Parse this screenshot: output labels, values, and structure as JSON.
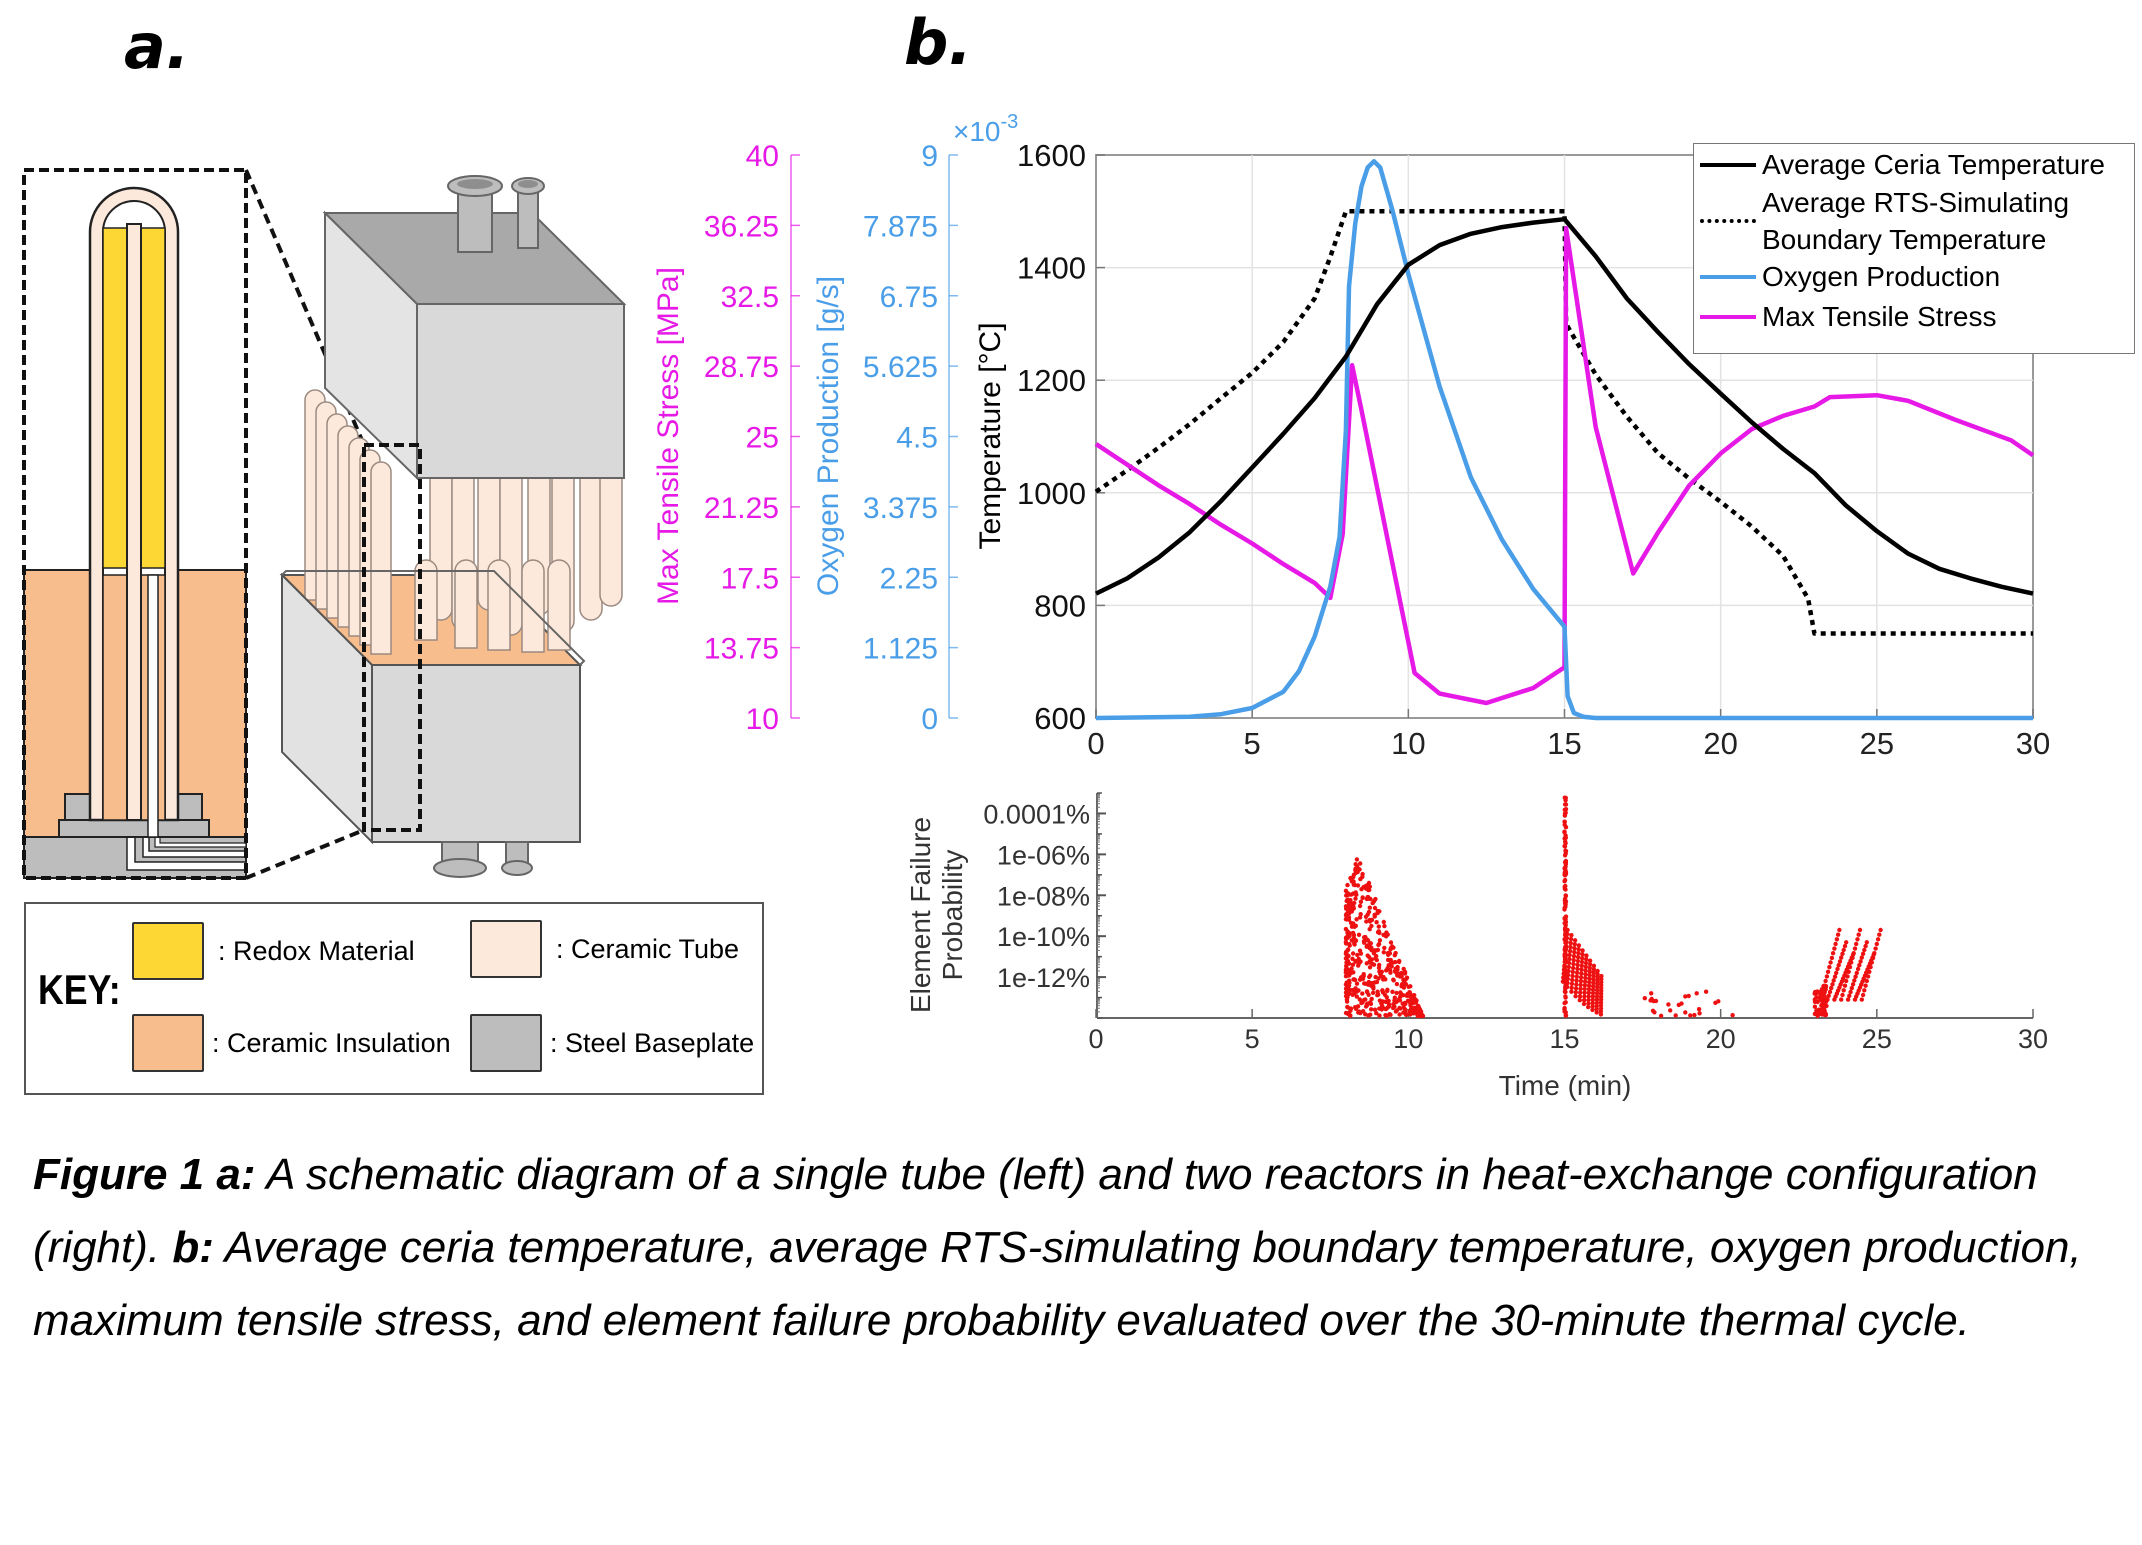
{
  "panel_labels": {
    "a": "a.",
    "b": "b."
  },
  "key": {
    "title": "KEY:",
    "items": [
      {
        "label": ": Redox Material",
        "color": "#fdd835"
      },
      {
        "label": ": Ceramic Tube",
        "color": "#fde9dc"
      },
      {
        "label": ": Ceramic Insulation",
        "color": "#f8bd8c"
      },
      {
        "label": ": Steel Baseplate",
        "color": "#bdbdbd"
      }
    ]
  },
  "schematic": {
    "colors": {
      "redox": "#fdd835",
      "tube": "#fde9dc",
      "insulation": "#f8bd8c",
      "steel": "#bdbdbd",
      "box_front": "#d9d9d9",
      "box_side": "#e4e4e4",
      "box_top": "#a9a9a9",
      "outline": "#222222"
    }
  },
  "caption": {
    "lead_a": "Figure 1 a:",
    "text_a": " A schematic diagram of a single tube (left) and two reactors in heat-exchange configuration (right). ",
    "lead_b": "b:",
    "text_b": " Average ceria temperature, average RTS-simulating boundary temperature, oxygen production, maximum tensile stress, and element failure probability evaluated over the 30-minute thermal cycle."
  },
  "chart_data": [
    {
      "type": "line",
      "title": "",
      "xlabel": "",
      "ylabel": "Temperature [°C]",
      "xlim": [
        0,
        30
      ],
      "ylim": [
        600,
        1600
      ],
      "xticks": [
        0,
        5,
        10,
        15,
        20,
        25,
        30
      ],
      "yticks": [
        600,
        800,
        1000,
        1200,
        1400,
        1600
      ],
      "grid": true,
      "legend_position": "top-right",
      "secondary_axes": [
        {
          "label": "Max Tensile Stress [MPa]",
          "color": "#e619e6",
          "ylim": [
            10,
            40
          ],
          "ticks": [
            "10",
            "13.75",
            "17.5",
            "21.25",
            "25",
            "28.75",
            "32.5",
            "36.25",
            "40"
          ]
        },
        {
          "label": "Oxygen Production [g/s]",
          "color": "#4a9ee8",
          "ylim": [
            0,
            9
          ],
          "multiplier": "×10",
          "exponent": "-3",
          "ticks": [
            "0",
            "1.125",
            "2.25",
            "3.375",
            "4.5",
            "5.625",
            "6.75",
            "7.875",
            "9"
          ]
        }
      ],
      "series": [
        {
          "name": "Average Ceria Temperature",
          "axis": "temperature",
          "color": "#000000",
          "style": "solid",
          "x": [
            0,
            1,
            2,
            3,
            4,
            5,
            6,
            7,
            8,
            9,
            10,
            11,
            12,
            13,
            14,
            15,
            16,
            17,
            18,
            19,
            20,
            21,
            22,
            23,
            24,
            25,
            26,
            27,
            28,
            29,
            30
          ],
          "y": [
            821,
            848,
            885,
            930,
            985,
            1045,
            1105,
            1168,
            1242,
            1335,
            1405,
            1440,
            1460,
            1472,
            1480,
            1486,
            1420,
            1345,
            1285,
            1228,
            1176,
            1125,
            1078,
            1035,
            978,
            932,
            892,
            865,
            848,
            833,
            821
          ]
        },
        {
          "name": "Average RTS-Simulating Boundary Temperature",
          "axis": "temperature",
          "color": "#000000",
          "style": "dotted",
          "x": [
            0,
            1,
            2,
            3,
            4,
            5,
            6,
            7,
            7.5,
            8,
            9,
            10,
            11,
            12,
            13,
            14,
            15,
            15.05,
            16,
            17,
            18,
            19,
            20,
            21,
            22,
            22.8,
            23,
            24,
            25,
            26,
            27,
            28,
            29,
            30
          ],
          "y": [
            1002,
            1040,
            1080,
            1122,
            1168,
            1213,
            1268,
            1345,
            1419,
            1500,
            1500,
            1500,
            1500,
            1500,
            1500,
            1500,
            1500,
            1300,
            1210,
            1135,
            1070,
            1025,
            984,
            940,
            888,
            812,
            750,
            750,
            750,
            750,
            750,
            750,
            750,
            750
          ]
        },
        {
          "name": "Oxygen Production",
          "axis": "oxygen",
          "unit": "g/s ×10^-3",
          "color": "#4a9ee8",
          "style": "solid",
          "x": [
            0,
            3,
            4,
            5,
            6,
            6.5,
            7,
            7.5,
            7.8,
            8.0,
            8.1,
            8.3,
            8.5,
            8.7,
            8.9,
            9.1,
            9.5,
            10,
            11,
            12,
            13,
            14,
            15,
            15.1,
            15.3,
            15.6,
            16,
            20,
            25,
            30
          ],
          "y": [
            0,
            0.02,
            0.06,
            0.16,
            0.42,
            0.75,
            1.3,
            2.1,
            2.9,
            4.6,
            6.9,
            7.9,
            8.5,
            8.8,
            8.9,
            8.8,
            8.1,
            7.1,
            5.3,
            3.85,
            2.85,
            2.06,
            1.46,
            0.35,
            0.08,
            0.02,
            0,
            0,
            0,
            0
          ]
        },
        {
          "name": "Max Tensile Stress",
          "axis": "stress",
          "unit": "MPa",
          "color": "#e619e6",
          "style": "solid",
          "x": [
            0,
            1,
            2,
            3,
            4,
            5,
            6,
            7,
            7.5,
            7.9,
            8.2,
            8.5,
            9.3,
            10.2,
            11,
            12.5,
            14,
            15,
            15.05,
            16,
            17.2,
            18,
            19,
            20,
            21,
            22,
            23,
            23.5,
            25,
            26,
            27.5,
            29.3,
            30
          ],
          "y": [
            24.6,
            23.5,
            22.4,
            21.4,
            20.3,
            19.3,
            18.2,
            17.2,
            16.4,
            19.8,
            28.8,
            26.4,
            19.8,
            12.4,
            11.3,
            10.8,
            11.6,
            12.7,
            36.1,
            25.5,
            17.7,
            19.9,
            22.4,
            24.1,
            25.4,
            26.1,
            26.6,
            27.1,
            27.2,
            26.9,
            25.9,
            24.8,
            24.0
          ]
        }
      ]
    },
    {
      "type": "scatter",
      "title": "",
      "xlabel": "Time (min)",
      "ylabel": "Element Failure Probability",
      "xlim": [
        0,
        30
      ],
      "yscale": "log",
      "ylim_percent": [
        1e-14,
        0.001
      ],
      "xticks": [
        0,
        5,
        10,
        15,
        20,
        25,
        30
      ],
      "yticks": [
        "0.0001%",
        "1e-06%",
        "1e-08%",
        "1e-10%",
        "1e-12%"
      ],
      "ytick_values_percent": [
        0.0001,
        1e-06,
        1e-08,
        1e-10,
        1e-12
      ],
      "color": "#ee1111",
      "clusters": [
        {
          "t_start": 8.0,
          "t_peak": 8.4,
          "t_end": 10.5,
          "peak_log10_percent": -6.05,
          "shape": "decay"
        },
        {
          "t_start": 15.0,
          "t_peak": 15.0,
          "t_end": 16.3,
          "peak_log10_percent": -3.1,
          "shape": "spike-fan"
        },
        {
          "t_start": 17.4,
          "t_peak": 18.0,
          "t_end": 20.4,
          "peak_log10_percent": -12.7,
          "shape": "sparse"
        },
        {
          "t_start": 23.0,
          "t_peak": 25.2,
          "t_end": 25.2,
          "peak_log10_percent": -9.7,
          "shape": "fan-rise"
        }
      ]
    }
  ]
}
